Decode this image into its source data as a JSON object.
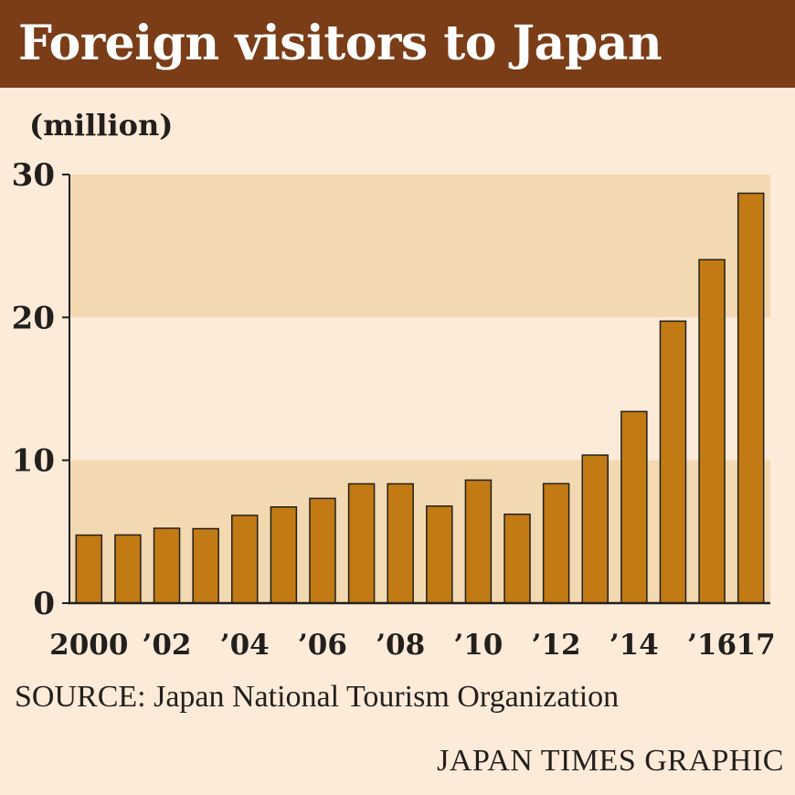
{
  "chart_data": {
    "type": "bar",
    "title": "Foreign visitors to Japan",
    "ylabel": "(million)",
    "xlabel": "",
    "ylim": [
      0,
      30
    ],
    "yticks": [
      0,
      10,
      20,
      30
    ],
    "categories": [
      "2000",
      "2001",
      "2002",
      "2003",
      "2004",
      "2005",
      "2006",
      "2007",
      "2008",
      "2009",
      "2010",
      "2011",
      "2012",
      "2013",
      "2014",
      "2015",
      "2016",
      "2017"
    ],
    "tick_labels": [
      "2000",
      "",
      "’02",
      "",
      "’04",
      "",
      "’06",
      "",
      "’08",
      "",
      "’10",
      "",
      "’12",
      "",
      "’14",
      "",
      "’16",
      "’17"
    ],
    "values": [
      4.76,
      4.77,
      5.24,
      5.21,
      6.14,
      6.73,
      7.33,
      8.35,
      8.35,
      6.79,
      8.61,
      6.22,
      8.36,
      10.36,
      13.41,
      19.74,
      24.04,
      28.69
    ],
    "grid": "alternating horizontal bands",
    "colors": {
      "bar": "#c17a14",
      "bar_outline": "#231f1c",
      "band": "#f3d9b1",
      "background": "#fcebd8",
      "title_bar": "#7a3d17"
    }
  },
  "source": "SOURCE: Japan National Tourism Organization",
  "credit": "JAPAN TIMES GRAPHIC"
}
